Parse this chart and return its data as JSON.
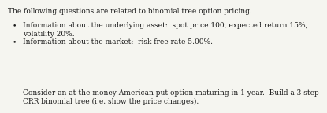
{
  "title_line": "The following questions are related to binomial tree option pricing.",
  "bullet1_line1": "Information about the underlying asset:  spot price 100, expected return 15%,",
  "bullet1_line2": "volatility 20%.",
  "bullet2_line1": "Information about the market:  risk-free rate 5.00%.",
  "footer_line1": "Consider an at-the-money American put option maturing in 1 year.  Build a 3-step",
  "footer_line2": "CRR binomial tree (i.e. show the price changes).",
  "background_color": "#f5f5f0",
  "text_color": "#1a1a1a",
  "font_size": 6.5,
  "bullet_char": "•"
}
